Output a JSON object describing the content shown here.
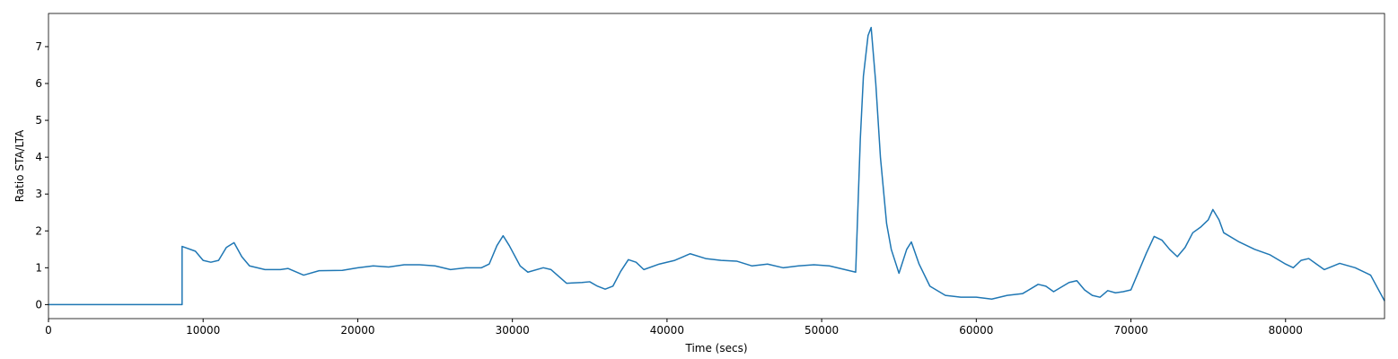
{
  "chart_data": {
    "type": "line",
    "x_label": "Time (secs)",
    "y_label": "Ratio STA/LTA",
    "color": "#1f77b4",
    "x": [
      0,
      8600,
      8640,
      8640,
      9500,
      10000,
      10500,
      11000,
      11500,
      12000,
      12500,
      13000,
      14000,
      15000,
      15500,
      16500,
      17500,
      19000,
      20000,
      21000,
      22000,
      23000,
      24000,
      25000,
      26000,
      27000,
      28000,
      28500,
      29000,
      29400,
      29800,
      30500,
      31000,
      32000,
      32500,
      33500,
      34500,
      35000,
      35500,
      36000,
      36500,
      37000,
      37500,
      38000,
      38500,
      39500,
      40500,
      41500,
      42500,
      43500,
      44500,
      45500,
      46500,
      47500,
      48500,
      49500,
      50500,
      51500,
      52200,
      52500,
      52700,
      53000,
      53200,
      53500,
      53800,
      54200,
      54500,
      55000,
      55500,
      55800,
      56300,
      57000,
      58000,
      59000,
      60000,
      61000,
      62000,
      63000,
      64000,
      64500,
      65000,
      66000,
      66500,
      67000,
      67500,
      68000,
      68500,
      69000,
      69500,
      70000,
      70500,
      71000,
      71500,
      72000,
      72500,
      73000,
      73500,
      74000,
      74500,
      75000,
      75300,
      75700,
      76000,
      77000,
      78000,
      79000,
      80000,
      80500,
      81000,
      81500,
      82000,
      82500,
      83500,
      84500,
      85500,
      86400
    ],
    "values": [
      0,
      0,
      0,
      1.58,
      1.45,
      1.2,
      1.15,
      1.2,
      1.55,
      1.68,
      1.3,
      1.05,
      0.95,
      0.95,
      0.98,
      0.8,
      0.92,
      0.93,
      1.0,
      1.05,
      1.02,
      1.08,
      1.08,
      1.05,
      0.95,
      1.0,
      1.0,
      1.1,
      1.6,
      1.87,
      1.6,
      1.05,
      0.88,
      1.0,
      0.95,
      0.58,
      0.6,
      0.62,
      0.5,
      0.42,
      0.5,
      0.9,
      1.22,
      1.15,
      0.95,
      1.1,
      1.2,
      1.38,
      1.25,
      1.2,
      1.18,
      1.05,
      1.1,
      1.0,
      1.05,
      1.08,
      1.05,
      0.95,
      0.88,
      4.5,
      6.2,
      7.3,
      7.52,
      6,
      4,
      2.2,
      1.5,
      0.85,
      1.5,
      1.7,
      1.1,
      0.5,
      0.25,
      0.2,
      0.2,
      0.15,
      0.25,
      0.3,
      0.55,
      0.5,
      0.35,
      0.6,
      0.65,
      0.4,
      0.25,
      0.2,
      0.38,
      0.32,
      0.35,
      0.4,
      0.9,
      1.4,
      1.85,
      1.75,
      1.5,
      1.3,
      1.55,
      1.95,
      2.1,
      2.3,
      2.58,
      2.3,
      1.95,
      1.7,
      1.5,
      1.35,
      1.1,
      1.0,
      1.2,
      1.25,
      1.1,
      0.95,
      1.12,
      1.0,
      0.8,
      0.1
    ],
    "xlim": [
      0,
      86400
    ],
    "ylim": [
      -0.38,
      7.9
    ],
    "xticks": [
      0,
      10000,
      20000,
      30000,
      40000,
      50000,
      60000,
      70000,
      80000
    ],
    "yticks": [
      0,
      1,
      2,
      3,
      4,
      5,
      6,
      7
    ]
  }
}
